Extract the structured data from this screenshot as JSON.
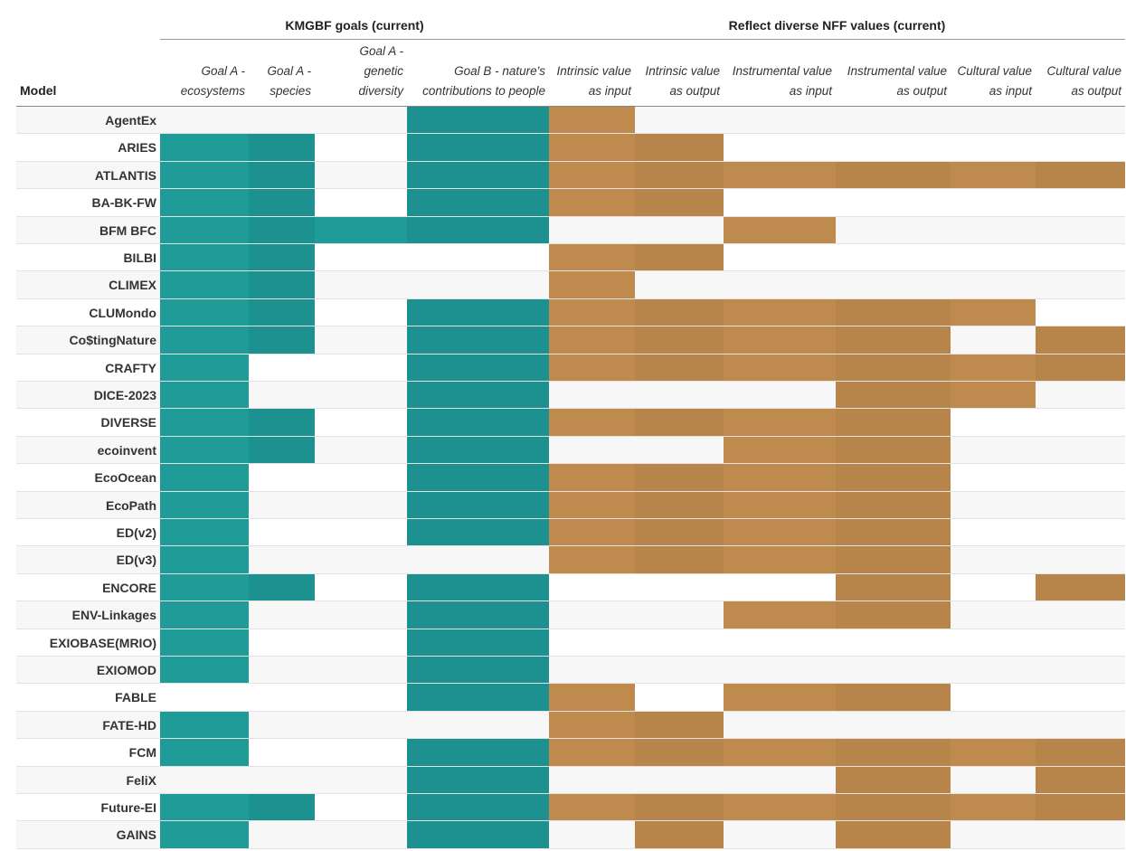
{
  "headers": {
    "group1": "KMGBF goals (current)",
    "group2": "Reflect diverse NFF values (current)",
    "model": "Model",
    "columns": [
      "Goal A -\necosystems",
      "Goal A -\nspecies",
      "Goal A -\ngenetic\ndiversity",
      "Goal B - nature's\ncontributions to people",
      "Intrinsic value\nas input",
      "Intrinsic value\nas output",
      "Instrumental value\nas input",
      "Instrumental value\nas output",
      "Cultural value\nas input",
      "Cultural value\nas output"
    ]
  },
  "colors": {
    "kmgbf": "#1f9b98",
    "nff": "#be8a4d",
    "alt_row": "#f7f7f7"
  },
  "rows": [
    {
      "model": "AgentEx",
      "cells": [
        0,
        0,
        0,
        1,
        1,
        0,
        0,
        0,
        0,
        0
      ]
    },
    {
      "model": "ARIES",
      "cells": [
        1,
        1,
        0,
        1,
        1,
        1,
        0,
        0,
        0,
        0
      ]
    },
    {
      "model": "ATLANTIS",
      "cells": [
        1,
        1,
        0,
        1,
        1,
        1,
        1,
        1,
        1,
        1
      ]
    },
    {
      "model": "BA-BK-FW",
      "cells": [
        1,
        1,
        0,
        1,
        1,
        1,
        0,
        0,
        0,
        0
      ]
    },
    {
      "model": "BFM BFC",
      "cells": [
        1,
        1,
        1,
        1,
        0,
        0,
        1,
        0,
        0,
        0
      ]
    },
    {
      "model": "BILBI",
      "cells": [
        1,
        1,
        0,
        0,
        1,
        1,
        0,
        0,
        0,
        0
      ]
    },
    {
      "model": "CLIMEX",
      "cells": [
        1,
        1,
        0,
        0,
        1,
        0,
        0,
        0,
        0,
        0
      ]
    },
    {
      "model": "CLUMondo",
      "cells": [
        1,
        1,
        0,
        1,
        1,
        1,
        1,
        1,
        1,
        0
      ]
    },
    {
      "model": "Co$tingNature",
      "cells": [
        1,
        1,
        0,
        1,
        1,
        1,
        1,
        1,
        0,
        1
      ]
    },
    {
      "model": "CRAFTY",
      "cells": [
        1,
        0,
        0,
        1,
        1,
        1,
        1,
        1,
        1,
        1
      ]
    },
    {
      "model": "DICE-2023",
      "cells": [
        1,
        0,
        0,
        1,
        0,
        0,
        0,
        1,
        1,
        0
      ]
    },
    {
      "model": "DIVERSE",
      "cells": [
        1,
        1,
        0,
        1,
        1,
        1,
        1,
        1,
        0,
        0
      ]
    },
    {
      "model": "ecoinvent",
      "cells": [
        1,
        1,
        0,
        1,
        0,
        0,
        1,
        1,
        0,
        0
      ]
    },
    {
      "model": "EcoOcean",
      "cells": [
        1,
        0,
        0,
        1,
        1,
        1,
        1,
        1,
        0,
        0
      ]
    },
    {
      "model": "EcoPath",
      "cells": [
        1,
        0,
        0,
        1,
        1,
        1,
        1,
        1,
        0,
        0
      ]
    },
    {
      "model": "ED(v2)",
      "cells": [
        1,
        0,
        0,
        1,
        1,
        1,
        1,
        1,
        0,
        0
      ]
    },
    {
      "model": "ED(v3)",
      "cells": [
        1,
        0,
        0,
        0,
        1,
        1,
        1,
        1,
        0,
        0
      ]
    },
    {
      "model": "ENCORE",
      "cells": [
        1,
        1,
        0,
        1,
        0,
        0,
        0,
        1,
        0,
        1
      ]
    },
    {
      "model": "ENV-Linkages",
      "cells": [
        1,
        0,
        0,
        1,
        0,
        0,
        1,
        1,
        0,
        0
      ]
    },
    {
      "model": "EXIOBASE(MRIO)",
      "cells": [
        1,
        0,
        0,
        1,
        0,
        0,
        0,
        0,
        0,
        0
      ]
    },
    {
      "model": "EXIOMOD",
      "cells": [
        1,
        0,
        0,
        1,
        0,
        0,
        0,
        0,
        0,
        0
      ]
    },
    {
      "model": "FABLE",
      "cells": [
        0,
        0,
        0,
        1,
        1,
        0,
        1,
        1,
        0,
        0
      ]
    },
    {
      "model": "FATE-HD",
      "cells": [
        1,
        0,
        0,
        0,
        1,
        1,
        0,
        0,
        0,
        0
      ]
    },
    {
      "model": "FCM",
      "cells": [
        1,
        0,
        0,
        1,
        1,
        1,
        1,
        1,
        1,
        1
      ]
    },
    {
      "model": "FeliX",
      "cells": [
        0,
        0,
        0,
        1,
        0,
        0,
        0,
        1,
        0,
        1
      ]
    },
    {
      "model": "Future-EI",
      "cells": [
        1,
        1,
        0,
        1,
        1,
        1,
        1,
        1,
        1,
        1
      ]
    },
    {
      "model": "GAINS",
      "cells": [
        1,
        0,
        0,
        1,
        0,
        1,
        0,
        1,
        0,
        0
      ]
    }
  ]
}
